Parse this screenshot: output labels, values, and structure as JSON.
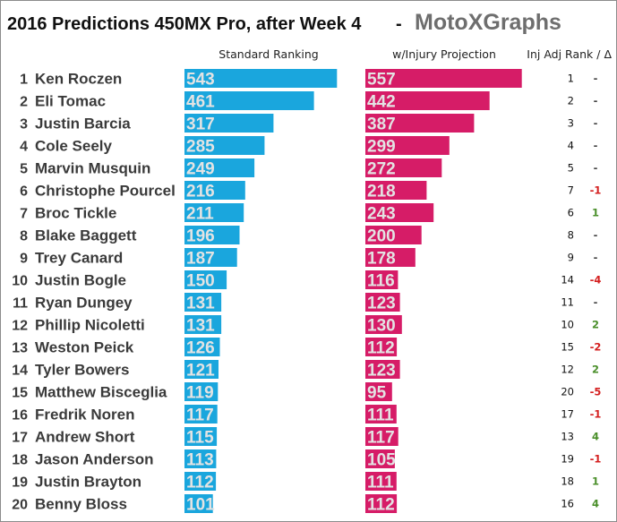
{
  "header": {
    "title": "2016 Predictions 450MX Pro, after Week 4",
    "separator": "-",
    "brand": "MotoXGraphs"
  },
  "colors": {
    "standard_bar": "#1aa6dd",
    "injury_bar": "#d61c67",
    "delta_up": "#4a8f2a",
    "delta_down": "#d42020",
    "delta_none": "#444444"
  },
  "chart_data": {
    "type": "bar",
    "orientation": "horizontal",
    "title": "2016 Predictions 450MX Pro, after Week 4",
    "columns": [
      "Standard Ranking",
      "w/Injury Projection",
      "Inj Adj Rank / Δ"
    ],
    "categories": [
      "Ken Roczen",
      "Eli Tomac",
      "Justin Barcia",
      "Cole Seely",
      "Marvin Musquin",
      "Christophe Pourcel",
      "Broc Tickle",
      "Blake Baggett",
      "Trey Canard",
      "Justin Bogle",
      "Ryan Dungey",
      "Phillip Nicoletti",
      "Weston Peick",
      "Tyler Bowers",
      "Matthew Bisceglia",
      "Fredrik Noren",
      "Andrew Short",
      "Jason Anderson",
      "Justin Brayton",
      "Benny Bloss"
    ],
    "ranks": [
      "1",
      "2",
      "3",
      "4",
      "5",
      "6",
      "7",
      "8",
      "9",
      "10",
      "11",
      "12",
      "13",
      "14",
      "15",
      "16",
      "17",
      "18",
      "19",
      "20"
    ],
    "series": [
      {
        "name": "Standard Ranking",
        "values": [
          543,
          461,
          317,
          285,
          249,
          216,
          211,
          196,
          187,
          150,
          131,
          131,
          126,
          121,
          119,
          117,
          115,
          113,
          112,
          101
        ]
      },
      {
        "name": "w/Injury Projection",
        "values": [
          557,
          442,
          387,
          299,
          272,
          218,
          243,
          200,
          178,
          116,
          123,
          130,
          112,
          123,
          95,
          111,
          117,
          105,
          111,
          112
        ]
      }
    ],
    "inj_adj_rank": [
      "1",
      "2",
      "3",
      "4",
      "5",
      "7",
      "6",
      "8",
      "9",
      "14",
      "11",
      "10",
      "15",
      "12",
      "20",
      "17",
      "13",
      "19",
      "18",
      "16"
    ],
    "delta": [
      "-",
      "-",
      "-",
      "-",
      "-",
      "-1",
      "1",
      "-",
      "-",
      "-4",
      "-",
      "2",
      "-2",
      "2",
      "-5",
      "-1",
      "4",
      "-1",
      "1",
      "4"
    ],
    "xlim": [
      0,
      600
    ],
    "grid": false,
    "legend": "none"
  }
}
